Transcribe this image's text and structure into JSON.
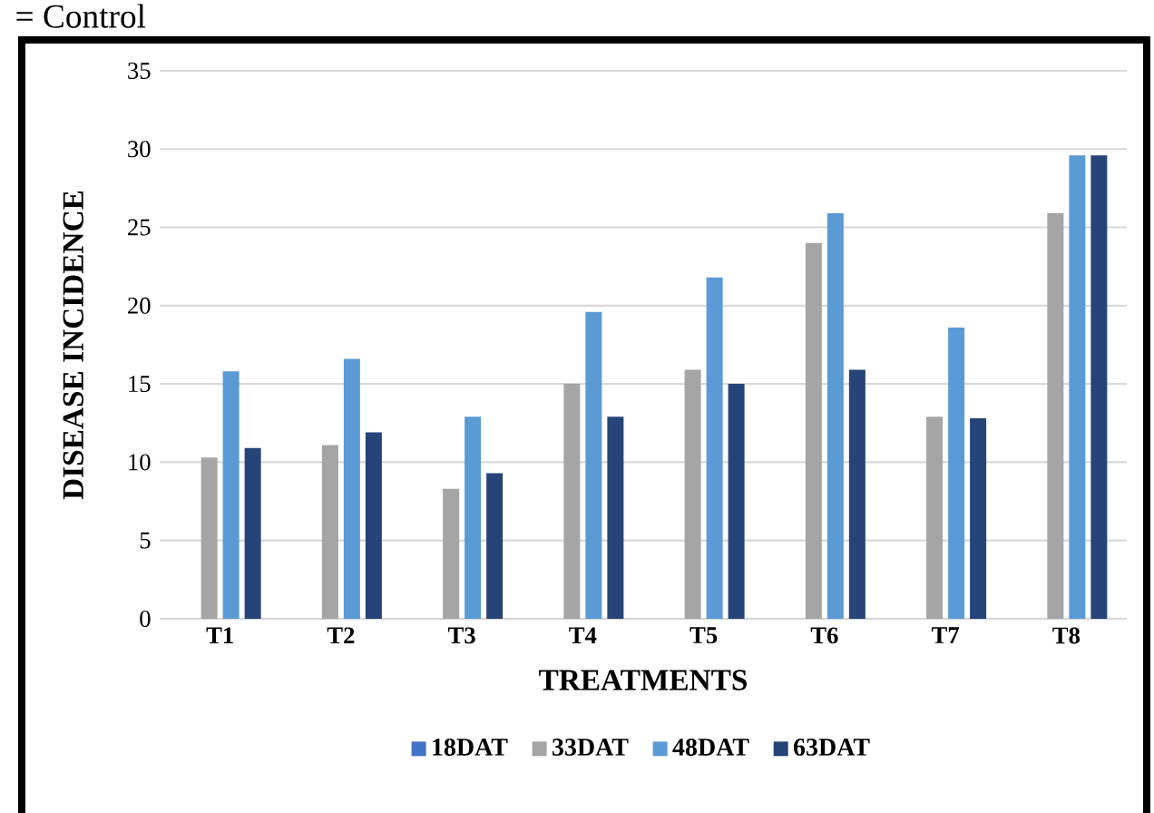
{
  "chart_data": {
    "type": "bar",
    "xlabel": "TREATMENTS",
    "ylabel": "DISEASE INCIDENCE",
    "categories": [
      "T1",
      "T2",
      "T3",
      "T4",
      "T5",
      "T6",
      "T7",
      "T8"
    ],
    "series": [
      {
        "name": "18DAT",
        "color": "#4472c4",
        "values": [
          0,
          0,
          0,
          0,
          0,
          0,
          0,
          0
        ]
      },
      {
        "name": "33DAT",
        "color": "#a5a5a5",
        "values": [
          10.3,
          11.1,
          8.3,
          15.0,
          15.9,
          24.0,
          12.9,
          25.9
        ]
      },
      {
        "name": "48DAT",
        "color": "#5b9bd5",
        "values": [
          15.8,
          16.6,
          12.9,
          19.6,
          21.8,
          25.9,
          18.6,
          29.6
        ]
      },
      {
        "name": "63DAT",
        "color": "#264478",
        "values": [
          10.9,
          11.9,
          9.3,
          12.9,
          15.0,
          15.9,
          12.8,
          29.6
        ]
      }
    ],
    "ylim": [
      0,
      35
    ],
    "yticks": [
      0,
      5,
      10,
      15,
      20,
      25,
      30,
      35
    ],
    "grid": "y",
    "legend": "bottom",
    "annotations": [
      "= Control"
    ]
  }
}
